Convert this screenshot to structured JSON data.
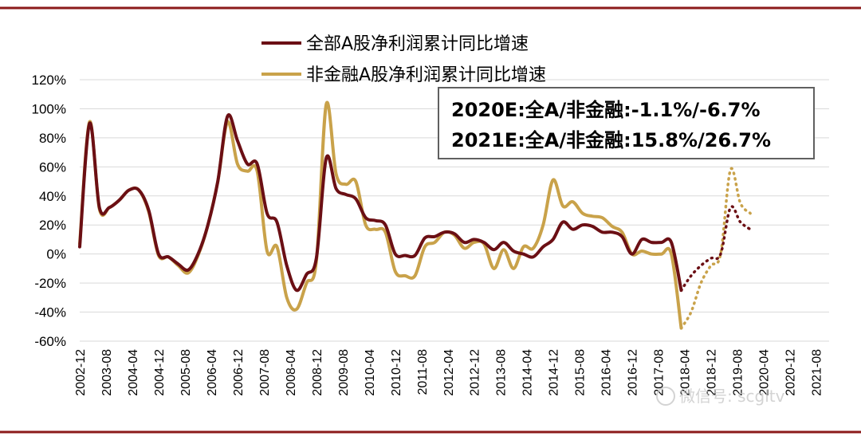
{
  "chart_data": {
    "type": "line",
    "ylim": [
      -60,
      120
    ],
    "yticks": [
      "120%",
      "100%",
      "80%",
      "60%",
      "40%",
      "20%",
      "0%",
      "-20%",
      "-40%",
      "-60%"
    ],
    "yvalues": [
      120,
      100,
      80,
      60,
      40,
      20,
      0,
      -20,
      -40,
      -60
    ],
    "xlim": [
      "2002-12",
      "2021-12"
    ],
    "xticks": [
      "2002-12",
      "2003-08",
      "2004-04",
      "2004-12",
      "2005-08",
      "2006-04",
      "2006-12",
      "2007-08",
      "2008-04",
      "2008-12",
      "2009-08",
      "2010-04",
      "2010-12",
      "2011-08",
      "2012-04",
      "2012-12",
      "2013-08",
      "2014-04",
      "2014-12",
      "2015-08",
      "2016-04",
      "2016-12",
      "2017-08",
      "2018-04",
      "2018-12",
      "2019-08",
      "2020-04",
      "2020-12",
      "2021-08"
    ],
    "grid": "horizontal",
    "series": [
      {
        "name": "全部A股净利润累计同比增速",
        "color": "#6b0f14",
        "actual": [
          [
            "2002-12",
            5
          ],
          [
            "2003-03",
            90
          ],
          [
            "2003-06",
            32
          ],
          [
            "2003-09",
            32
          ],
          [
            "2003-12",
            37
          ],
          [
            "2004-03",
            44
          ],
          [
            "2004-06",
            44
          ],
          [
            "2004-09",
            30
          ],
          [
            "2004-12",
            0
          ],
          [
            "2005-03",
            -2
          ],
          [
            "2005-06",
            -7
          ],
          [
            "2005-09",
            -11
          ],
          [
            "2005-12",
            0
          ],
          [
            "2006-03",
            20
          ],
          [
            "2006-06",
            50
          ],
          [
            "2006-09",
            95
          ],
          [
            "2006-12",
            78
          ],
          [
            "2007-03",
            62
          ],
          [
            "2007-06",
            62
          ],
          [
            "2007-09",
            28
          ],
          [
            "2007-12",
            22
          ],
          [
            "2008-03",
            -8
          ],
          [
            "2008-06",
            -25
          ],
          [
            "2008-09",
            -14
          ],
          [
            "2008-12",
            -3
          ],
          [
            "2009-03",
            66
          ],
          [
            "2009-06",
            45
          ],
          [
            "2009-09",
            41
          ],
          [
            "2009-12",
            38
          ],
          [
            "2010-03",
            25
          ],
          [
            "2010-06",
            23
          ],
          [
            "2010-09",
            20
          ],
          [
            "2010-12",
            0
          ],
          [
            "2011-03",
            -1
          ],
          [
            "2011-06",
            -1
          ],
          [
            "2011-09",
            11
          ],
          [
            "2011-12",
            12
          ],
          [
            "2012-03",
            15
          ],
          [
            "2012-06",
            14
          ],
          [
            "2012-09",
            8
          ],
          [
            "2012-12",
            10
          ],
          [
            "2013-03",
            8
          ],
          [
            "2013-06",
            3
          ],
          [
            "2013-09",
            8
          ],
          [
            "2013-12",
            2
          ],
          [
            "2014-03",
            0
          ],
          [
            "2014-06",
            -2
          ],
          [
            "2014-09",
            5
          ],
          [
            "2014-12",
            10
          ],
          [
            "2015-03",
            22
          ],
          [
            "2015-06",
            17
          ],
          [
            "2015-09",
            20
          ],
          [
            "2015-12",
            19
          ],
          [
            "2016-03",
            15
          ],
          [
            "2016-06",
            15
          ],
          [
            "2016-09",
            12
          ],
          [
            "2016-12",
            0
          ],
          [
            "2017-03",
            10
          ],
          [
            "2017-06",
            8
          ],
          [
            "2017-09",
            8
          ],
          [
            "2017-12",
            8
          ],
          [
            "2018-03",
            -25
          ]
        ],
        "forecast": [
          [
            "2018-03",
            -25
          ],
          [
            "2018-06",
            -15
          ],
          [
            "2018-09",
            -8
          ],
          [
            "2018-12",
            -3
          ],
          [
            "2019-03",
            0
          ],
          [
            "2019-06",
            32
          ],
          [
            "2019-09",
            22
          ],
          [
            "2019-12",
            17
          ]
        ]
      },
      {
        "name": "非金融A股净利润累计同比增速",
        "color": "#c9a24a",
        "actual": [
          [
            "2002-12",
            7
          ],
          [
            "2003-03",
            91
          ],
          [
            "2003-06",
            31
          ],
          [
            "2003-09",
            32
          ],
          [
            "2003-12",
            37
          ],
          [
            "2004-03",
            44
          ],
          [
            "2004-06",
            44
          ],
          [
            "2004-09",
            29
          ],
          [
            "2004-12",
            -1
          ],
          [
            "2005-03",
            -2
          ],
          [
            "2005-06",
            -8
          ],
          [
            "2005-09",
            -13
          ],
          [
            "2005-12",
            -1
          ],
          [
            "2006-03",
            20
          ],
          [
            "2006-06",
            50
          ],
          [
            "2006-09",
            91
          ],
          [
            "2006-12",
            62
          ],
          [
            "2007-03",
            57
          ],
          [
            "2007-06",
            57
          ],
          [
            "2007-09",
            2
          ],
          [
            "2007-12",
            5
          ],
          [
            "2008-03",
            -30
          ],
          [
            "2008-06",
            -38
          ],
          [
            "2008-09",
            -20
          ],
          [
            "2008-12",
            -5
          ],
          [
            "2009-03",
            103
          ],
          [
            "2009-06",
            55
          ],
          [
            "2009-09",
            48
          ],
          [
            "2009-12",
            50
          ],
          [
            "2010-03",
            20
          ],
          [
            "2010-06",
            17
          ],
          [
            "2010-09",
            15
          ],
          [
            "2010-12",
            -12
          ],
          [
            "2011-03",
            -15
          ],
          [
            "2011-06",
            -15
          ],
          [
            "2011-09",
            5
          ],
          [
            "2011-12",
            8
          ],
          [
            "2012-03",
            15
          ],
          [
            "2012-06",
            13
          ],
          [
            "2012-09",
            4
          ],
          [
            "2012-12",
            8
          ],
          [
            "2013-03",
            7
          ],
          [
            "2013-06",
            -10
          ],
          [
            "2013-09",
            3
          ],
          [
            "2013-12",
            -10
          ],
          [
            "2014-03",
            5
          ],
          [
            "2014-06",
            4
          ],
          [
            "2014-09",
            20
          ],
          [
            "2014-12",
            51
          ],
          [
            "2015-03",
            33
          ],
          [
            "2015-06",
            36
          ],
          [
            "2015-09",
            28
          ],
          [
            "2015-12",
            26
          ],
          [
            "2016-03",
            25
          ],
          [
            "2016-06",
            19
          ],
          [
            "2016-09",
            15
          ],
          [
            "2016-12",
            0
          ],
          [
            "2017-03",
            2
          ],
          [
            "2017-06",
            0
          ],
          [
            "2017-09",
            0
          ],
          [
            "2017-12",
            0
          ],
          [
            "2018-03",
            -51
          ]
        ],
        "forecast": [
          [
            "2018-03",
            -51
          ],
          [
            "2018-06",
            -40
          ],
          [
            "2018-09",
            -20
          ],
          [
            "2018-12",
            -8
          ],
          [
            "2019-03",
            0
          ],
          [
            "2019-06",
            58
          ],
          [
            "2019-09",
            35
          ],
          [
            "2019-12",
            28
          ]
        ]
      }
    ]
  },
  "legend": {
    "series_all": "全部A股净利润累计同比增速",
    "series_nonfin": "非金融A股净利润累计同比增速"
  },
  "annotation": {
    "line1": "2020E:全A/非金融:-1.1%/-6.7%",
    "line2": "2021E:全A/非金融:15.8%/26.7%"
  },
  "watermark": "微信号: scgltv",
  "colors": {
    "frame": "#8b1a1a",
    "all_a": "#6b0f14",
    "nonfin": "#c9a24a",
    "grid": "#d9d9d9",
    "box_border": "#606060"
  }
}
